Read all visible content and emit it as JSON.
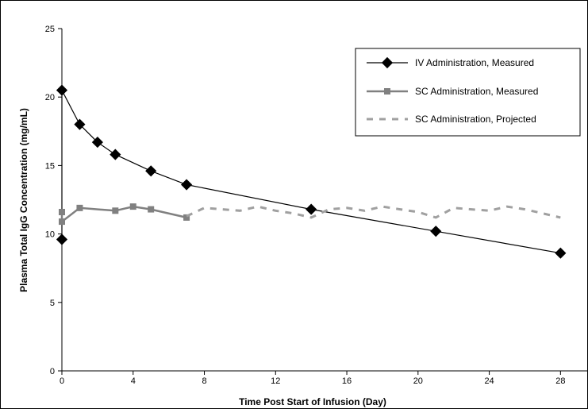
{
  "chart_data": {
    "type": "line",
    "title": "",
    "xlabel": "Time Post Start of Infusion (Day)",
    "ylabel": "Plasma Total IgG Concentration (mg/mL)",
    "xlim": [
      0,
      29.5
    ],
    "ylim": [
      0,
      25
    ],
    "xticks": [
      0,
      4,
      8,
      12,
      16,
      20,
      24,
      28
    ],
    "yticks": [
      0,
      5,
      10,
      15,
      20,
      25
    ],
    "grid": false,
    "legend_position": "top-right",
    "series": [
      {
        "name": "IV Administration, Measured",
        "style": "solid-diamond",
        "color": "#000000",
        "x": [
          0,
          0,
          1,
          2,
          3,
          5,
          7,
          14,
          21,
          28
        ],
        "y": [
          9.6,
          20.5,
          18.0,
          16.7,
          15.8,
          14.6,
          13.6,
          11.8,
          10.2,
          8.6
        ]
      },
      {
        "name": "SC Administration, Measured",
        "style": "solid-square",
        "color": "#808080",
        "x": [
          0,
          0,
          1,
          3,
          4,
          5,
          7
        ],
        "y": [
          11.6,
          10.9,
          11.9,
          11.7,
          12.0,
          11.8,
          11.2
        ]
      },
      {
        "name": "SC Administration, Projected",
        "style": "dashed",
        "color": "#a0a0a0",
        "x": [
          7,
          8,
          9,
          10,
          11,
          12,
          13,
          14,
          15,
          16,
          17,
          18,
          19,
          20,
          21,
          22,
          23,
          24,
          25,
          26,
          27,
          28
        ],
        "y": [
          11.3,
          11.9,
          11.8,
          11.7,
          12.0,
          11.7,
          11.5,
          11.2,
          11.8,
          11.9,
          11.7,
          12.0,
          11.8,
          11.6,
          11.2,
          11.9,
          11.8,
          11.7,
          12.0,
          11.8,
          11.5,
          11.2
        ]
      }
    ]
  }
}
